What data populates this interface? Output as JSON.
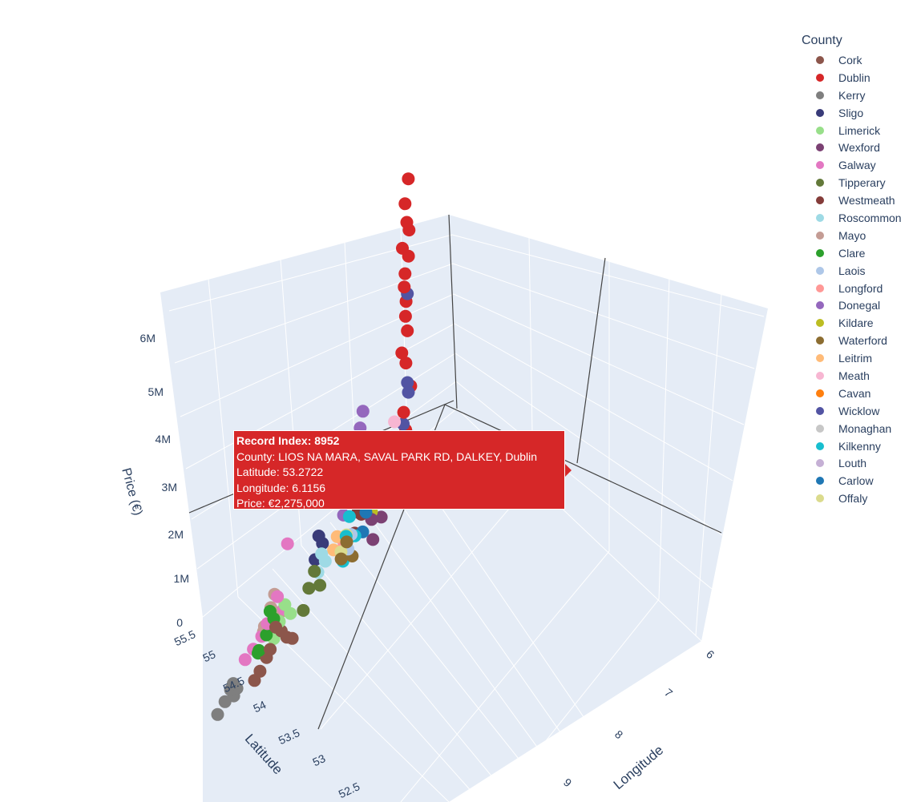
{
  "legend": {
    "title": "County",
    "items": [
      {
        "label": "Cork",
        "color": "#8c564b"
      },
      {
        "label": "Dublin",
        "color": "#d62728"
      },
      {
        "label": "Kerry",
        "color": "#7f7f7f"
      },
      {
        "label": "Sligo",
        "color": "#393b79"
      },
      {
        "label": "Limerick",
        "color": "#98df8a"
      },
      {
        "label": "Wexford",
        "color": "#7b4173"
      },
      {
        "label": "Galway",
        "color": "#e377c2"
      },
      {
        "label": "Tipperary",
        "color": "#637939"
      },
      {
        "label": "Westmeath",
        "color": "#843c39"
      },
      {
        "label": "Roscommon",
        "color": "#9edae5"
      },
      {
        "label": "Mayo",
        "color": "#c49c94"
      },
      {
        "label": "Clare",
        "color": "#2ca02c"
      },
      {
        "label": "Laois",
        "color": "#aec7e8"
      },
      {
        "label": "Longford",
        "color": "#ff9896"
      },
      {
        "label": "Donegal",
        "color": "#9467bd"
      },
      {
        "label": "Kildare",
        "color": "#bcbd22"
      },
      {
        "label": "Waterford",
        "color": "#8c6d31"
      },
      {
        "label": "Leitrim",
        "color": "#ffbb78"
      },
      {
        "label": "Meath",
        "color": "#f7b6d2"
      },
      {
        "label": "Cavan",
        "color": "#ff7f0e"
      },
      {
        "label": "Wicklow",
        "color": "#5254a3"
      },
      {
        "label": "Monaghan",
        "color": "#c7c7c7"
      },
      {
        "label": "Kilkenny",
        "color": "#17becf"
      },
      {
        "label": "Louth",
        "color": "#c5b0d5"
      },
      {
        "label": "Carlow",
        "color": "#1f77b4"
      },
      {
        "label": "Offaly",
        "color": "#dbdb8d"
      }
    ]
  },
  "tooltip": {
    "line1": "Record Index: 8952",
    "line2": "County: LIOS NA MARA, SAVAL PARK RD, DALKEY, Dublin",
    "line3": "Latitude: 53.2722",
    "line4": "Longitude: 6.1156",
    "line5": "Price: €2,275,000",
    "color": "#d62728"
  },
  "chart_data": {
    "type": "scatter",
    "mode": "3d",
    "xlabel": "Longitude",
    "ylabel": "Latitude",
    "zlabel": "Price (€)",
    "x_ticks": [
      "6",
      "7",
      "8",
      "9"
    ],
    "y_ticks": [
      "55.5",
      "55",
      "54.5",
      "54",
      "53.5",
      "53",
      "52.5"
    ],
    "z_ticks": [
      "0",
      "1M",
      "2M",
      "3M",
      "4M",
      "5M",
      "6M"
    ],
    "xlim": [
      6,
      10
    ],
    "ylim": [
      52,
      55.5
    ],
    "zlim": [
      0,
      6500000
    ],
    "scene_bg": "#e5ecf6",
    "series": [
      {
        "name": "Dublin",
        "points": [
          [
            6.2,
            53.35,
            6300000
          ],
          [
            6.25,
            53.3,
            5900000
          ],
          [
            6.22,
            53.32,
            5500000
          ],
          [
            6.18,
            53.34,
            5300000
          ],
          [
            6.3,
            53.28,
            5100000
          ],
          [
            6.2,
            53.36,
            4800000
          ],
          [
            6.25,
            53.3,
            4550000
          ],
          [
            6.28,
            53.33,
            4300000
          ],
          [
            6.22,
            53.28,
            4000000
          ],
          [
            6.26,
            53.35,
            3700000
          ],
          [
            6.2,
            53.3,
            3400000
          ],
          [
            6.3,
            53.25,
            3100000
          ],
          [
            6.24,
            53.32,
            2800000
          ],
          [
            6.1156,
            53.2722,
            2275000
          ],
          [
            6.28,
            53.3,
            1900000
          ],
          [
            6.26,
            53.36,
            1500000
          ],
          [
            6.3,
            53.38,
            1200000
          ],
          [
            6.32,
            53.35,
            900000
          ]
        ]
      },
      {
        "name": "Wicklow",
        "points": [
          [
            6.1,
            53.05,
            4200000
          ],
          [
            6.08,
            53.0,
            2500000
          ],
          [
            6.05,
            52.98,
            2300000
          ],
          [
            6.15,
            52.95,
            1800000
          ],
          [
            6.2,
            52.9,
            1500000
          ],
          [
            6.1,
            53.0,
            1200000
          ],
          [
            6.25,
            52.95,
            1000000
          ],
          [
            6.12,
            53.05,
            800000
          ]
        ]
      },
      {
        "name": "Donegal",
        "points": [
          [
            7.8,
            54.9,
            2200000
          ],
          [
            7.9,
            55.0,
            1900000
          ],
          [
            8.0,
            54.8,
            1600000
          ],
          [
            7.7,
            54.95,
            1300000
          ],
          [
            8.1,
            54.7,
            1000000
          ],
          [
            7.95,
            54.9,
            800000
          ],
          [
            8.2,
            54.85,
            600000
          ],
          [
            7.85,
            54.75,
            400000
          ]
        ]
      },
      {
        "name": "Galway",
        "points": [
          [
            8.8,
            53.3,
            1700000
          ],
          [
            9.0,
            53.25,
            900000
          ],
          [
            9.2,
            53.2,
            600000
          ],
          [
            8.9,
            53.35,
            500000
          ],
          [
            9.4,
            53.4,
            400000
          ],
          [
            9.1,
            53.3,
            300000
          ],
          [
            9.6,
            53.45,
            300000
          ],
          [
            9.8,
            53.5,
            250000
          ]
        ]
      },
      {
        "name": "Cork",
        "points": [
          [
            8.5,
            51.9,
            800000
          ],
          [
            8.4,
            51.95,
            600000
          ],
          [
            8.6,
            51.85,
            500000
          ],
          [
            8.7,
            51.9,
            400000
          ],
          [
            8.3,
            52.0,
            350000
          ],
          [
            8.8,
            51.8,
            300000
          ],
          [
            8.9,
            51.75,
            250000
          ],
          [
            8.2,
            52.05,
            200000
          ]
        ]
      },
      {
        "name": "Kerry",
        "points": [
          [
            9.5,
            52.1,
            500000
          ],
          [
            9.6,
            52.2,
            400000
          ],
          [
            9.4,
            52.05,
            350000
          ],
          [
            9.7,
            52.15,
            300000
          ],
          [
            9.8,
            52.0,
            250000
          ],
          [
            9.55,
            52.25,
            200000
          ]
        ]
      },
      {
        "name": "Kildare",
        "points": [
          [
            6.7,
            53.2,
            1600000
          ],
          [
            6.8,
            53.15,
            1200000
          ],
          [
            6.75,
            53.25,
            900000
          ],
          [
            6.9,
            53.1,
            700000
          ],
          [
            6.65,
            53.3,
            500000
          ]
        ]
      },
      {
        "name": "Meath",
        "points": [
          [
            6.6,
            53.6,
            1800000
          ],
          [
            6.7,
            53.65,
            1300000
          ],
          [
            6.5,
            53.55,
            900000
          ],
          [
            6.8,
            53.7,
            600000
          ]
        ]
      },
      {
        "name": "Wexford",
        "points": [
          [
            6.5,
            52.4,
            1300000
          ],
          [
            6.4,
            52.45,
            1000000
          ],
          [
            6.6,
            52.35,
            800000
          ],
          [
            6.45,
            52.5,
            600000
          ],
          [
            6.55,
            52.3,
            400000
          ]
        ]
      },
      {
        "name": "Kilkenny",
        "points": [
          [
            7.2,
            52.65,
            1200000
          ],
          [
            7.25,
            52.6,
            900000
          ],
          [
            7.1,
            52.7,
            700000
          ],
          [
            7.3,
            52.55,
            500000
          ]
        ]
      },
      {
        "name": "Waterford",
        "points": [
          [
            7.1,
            52.25,
            900000
          ],
          [
            7.2,
            52.2,
            700000
          ],
          [
            7.0,
            52.3,
            500000
          ]
        ]
      },
      {
        "name": "Clare",
        "points": [
          [
            9.0,
            52.85,
            900000
          ],
          [
            8.9,
            52.8,
            700000
          ],
          [
            9.1,
            52.9,
            500000
          ],
          [
            9.2,
            52.75,
            400000
          ],
          [
            9.3,
            52.95,
            300000
          ]
        ]
      },
      {
        "name": "Limerick",
        "points": [
          [
            8.6,
            52.65,
            800000
          ],
          [
            8.7,
            52.6,
            600000
          ],
          [
            8.5,
            52.7,
            500000
          ],
          [
            8.8,
            52.55,
            400000
          ]
        ]
      },
      {
        "name": "Tipperary",
        "points": [
          [
            7.9,
            52.5,
            900000
          ],
          [
            8.0,
            52.45,
            700000
          ],
          [
            7.8,
            52.55,
            500000
          ],
          [
            8.1,
            52.4,
            400000
          ]
        ]
      },
      {
        "name": "Mayo",
        "points": [
          [
            9.3,
            53.85,
            800000
          ],
          [
            9.4,
            53.9,
            600000
          ],
          [
            9.5,
            53.8,
            400000
          ],
          [
            9.2,
            53.95,
            300000
          ],
          [
            9.6,
            54.0,
            250000
          ]
        ]
      },
      {
        "name": "Sligo",
        "points": [
          [
            8.5,
            54.25,
            900000
          ],
          [
            8.4,
            54.2,
            700000
          ],
          [
            8.6,
            54.3,
            500000
          ]
        ]
      },
      {
        "name": "Roscommon",
        "points": [
          [
            8.2,
            53.65,
            700000
          ],
          [
            8.1,
            53.6,
            500000
          ],
          [
            8.3,
            53.7,
            400000
          ]
        ]
      },
      {
        "name": "Westmeath",
        "points": [
          [
            7.35,
            53.5,
            900000
          ],
          [
            7.3,
            53.55,
            700000
          ],
          [
            7.4,
            53.45,
            500000
          ]
        ]
      },
      {
        "name": "Cavan",
        "points": [
          [
            7.35,
            53.95,
            900000
          ],
          [
            7.4,
            54.0,
            700000
          ],
          [
            7.3,
            53.9,
            500000
          ]
        ]
      },
      {
        "name": "Monaghan",
        "points": [
          [
            6.95,
            54.2,
            900000
          ],
          [
            7.0,
            54.15,
            700000
          ]
        ]
      },
      {
        "name": "Louth",
        "points": [
          [
            6.4,
            53.95,
            1100000
          ],
          [
            6.35,
            53.9,
            800000
          ]
        ]
      },
      {
        "name": "Longford",
        "points": [
          [
            7.8,
            53.7,
            600000
          ],
          [
            7.75,
            53.75,
            400000
          ]
        ]
      },
      {
        "name": "Leitrim",
        "points": [
          [
            8.0,
            54.0,
            600000
          ],
          [
            8.1,
            54.05,
            400000
          ]
        ]
      },
      {
        "name": "Laois",
        "points": [
          [
            7.3,
            53.0,
            700000
          ],
          [
            7.35,
            52.95,
            500000
          ]
        ]
      },
      {
        "name": "Offaly",
        "points": [
          [
            7.5,
            53.25,
            700000
          ],
          [
            7.6,
            53.2,
            500000
          ]
        ]
      },
      {
        "name": "Carlow",
        "points": [
          [
            6.9,
            52.8,
            900000
          ],
          [
            6.95,
            52.75,
            600000
          ]
        ]
      }
    ]
  }
}
